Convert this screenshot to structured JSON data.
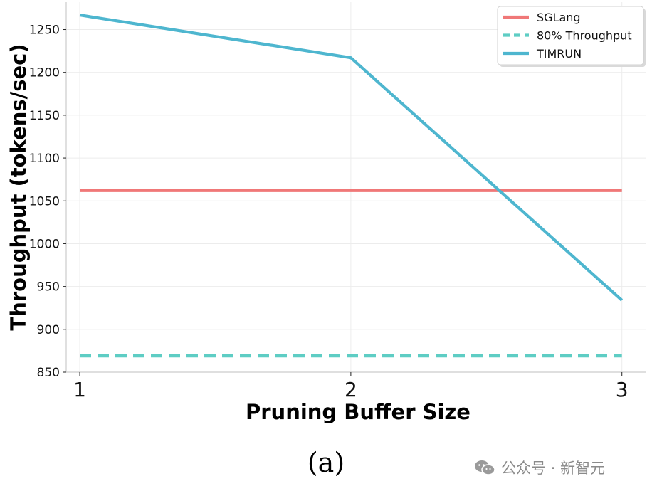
{
  "chart_data": {
    "type": "line",
    "x": [
      1,
      2,
      3
    ],
    "xticks": [
      "1",
      "2",
      "3"
    ],
    "xlim": [
      0.95,
      3.09
    ],
    "ylim": [
      850,
      1282
    ],
    "yticks": [
      850,
      900,
      950,
      1000,
      1050,
      1100,
      1150,
      1200,
      1250
    ],
    "xlabel": "Pruning Buffer Size",
    "ylabel": "Throughput (tokens/sec)",
    "grid": true,
    "legend_position": "top-right",
    "series": [
      {
        "name": "SGLang",
        "values": [
          1062,
          1062,
          1062
        ],
        "color": "#f07878",
        "dash": "solid"
      },
      {
        "name": "80% Throughput",
        "values": [
          869,
          869,
          869
        ],
        "color": "#5ecdc4",
        "dash": "dashed"
      },
      {
        "name": "TIMRUN",
        "values": [
          1267,
          1217,
          934
        ],
        "color": "#4eb6cf",
        "dash": "solid"
      }
    ]
  },
  "caption": "(a)",
  "watermark": {
    "text": "公众号 · 新智元",
    "icon": "wechat-icon"
  }
}
